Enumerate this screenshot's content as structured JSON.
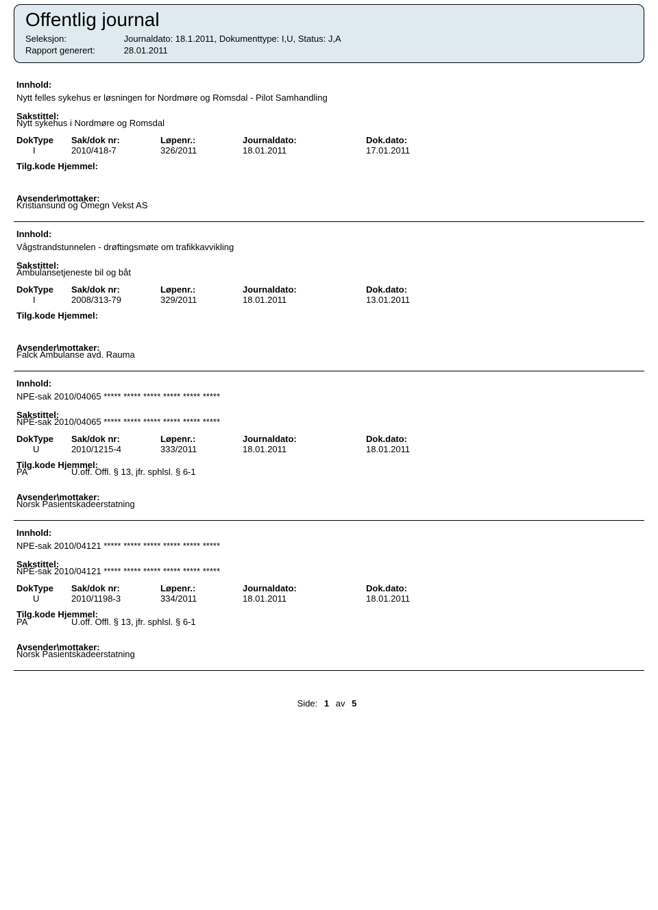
{
  "header": {
    "title": "Offentlig journal",
    "seleksjon_label": "Seleksjon:",
    "seleksjon_value": "Journaldato: 18.1.2011, Dokumenttype: I,U, Status: J,A",
    "rapport_label": "Rapport generert:",
    "rapport_value": "28.01.2011"
  },
  "labels": {
    "innhold": "Innhold:",
    "sakstittel": "Sakstittel:",
    "doktype": "DokType",
    "saknr": "Sak/dok nr:",
    "lopenr": "Løpenr.:",
    "journaldato": "Journaldato:",
    "dokdato": "Dok.dato:",
    "tilg": "Tilg.kode Hjemmel:",
    "avsender": "Avsender\\mottaker:"
  },
  "entries": [
    {
      "innhold": "Nytt felles sykehus er løsningen for Nordmøre og Romsdal - Pilot Samhandling",
      "sakstittel": "Nytt sykehus i Nordmøre og Romsdal",
      "doktype": "I",
      "saknr": "2010/418-7",
      "lopenr": "326/2011",
      "journaldato": "18.01.2011",
      "dokdato": "17.01.2011",
      "tilg_code": "",
      "tilg_text": "",
      "avsender": "Kristiansund og Omegn Vekst AS"
    },
    {
      "innhold": "Vågstrandstunnelen - drøftingsmøte om trafikkavvikling",
      "sakstittel": "Ambulansetjeneste bil og båt",
      "doktype": "I",
      "saknr": "2008/313-79",
      "lopenr": "329/2011",
      "journaldato": "18.01.2011",
      "dokdato": "13.01.2011",
      "tilg_code": "",
      "tilg_text": "",
      "avsender": "Falck Ambulanse avd. Rauma"
    },
    {
      "innhold": "NPE-sak 2010/04065 ***** ***** ***** ***** ***** *****",
      "sakstittel": "NPE-sak 2010/04065 ***** ***** ***** ***** ***** *****",
      "doktype": "U",
      "saknr": "2010/1215-4",
      "lopenr": "333/2011",
      "journaldato": "18.01.2011",
      "dokdato": "18.01.2011",
      "tilg_code": "PA",
      "tilg_text": "U.off. Offl. § 13, jfr. sphlsl. § 6-1",
      "avsender": "Norsk Pasientskadeerstatning"
    },
    {
      "innhold": "NPE-sak 2010/04121 ***** ***** ***** ***** ***** *****",
      "sakstittel": "NPE-sak 2010/04121 ***** ***** ***** ***** ***** *****",
      "doktype": "U",
      "saknr": "2010/1198-3",
      "lopenr": "334/2011",
      "journaldato": "18.01.2011",
      "dokdato": "18.01.2011",
      "tilg_code": "PA",
      "tilg_text": "U.off. Offl. § 13, jfr. sphlsl. § 6-1",
      "avsender": "Norsk Pasientskadeerstatning"
    }
  ],
  "footer": {
    "side_label": "Side:",
    "page_current": "1",
    "av_label": "av",
    "page_total": "5"
  },
  "colors": {
    "header_bg": "#dfeaf0",
    "border": "#000000",
    "text": "#000000",
    "background": "#ffffff"
  }
}
